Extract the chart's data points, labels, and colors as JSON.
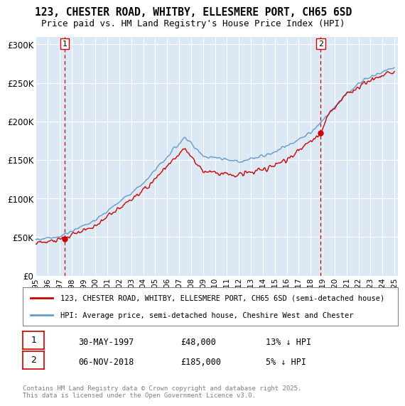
{
  "title_line1": "123, CHESTER ROAD, WHITBY, ELLESMERE PORT, CH65 6SD",
  "title_line2": "Price paid vs. HM Land Registry's House Price Index (HPI)",
  "background_color": "#dce9f5",
  "hpi_color": "#6699cc",
  "price_color": "#cc0000",
  "vline_color": "#cc0000",
  "purchase1_date": "30-MAY-1997",
  "purchase1_price": 48000,
  "purchase1_yr": 1997.42,
  "purchase1_hpi_pct": "13%",
  "purchase2_date": "06-NOV-2018",
  "purchase2_price": 185000,
  "purchase2_yr": 2018.84,
  "purchase2_hpi_pct": "5%",
  "legend_label1": "123, CHESTER ROAD, WHITBY, ELLESMERE PORT, CH65 6SD (semi-detached house)",
  "legend_label2": "HPI: Average price, semi-detached house, Cheshire West and Chester",
  "footnote": "Contains HM Land Registry data © Crown copyright and database right 2025.\nThis data is licensed under the Open Government Licence v3.0.",
  "ylim": [
    0,
    310000
  ],
  "yticks": [
    0,
    50000,
    100000,
    150000,
    200000,
    250000,
    300000
  ],
  "ytick_labels": [
    "£0",
    "£50K",
    "£100K",
    "£150K",
    "£200K",
    "£250K",
    "£300K"
  ],
  "x_start_year": 1995,
  "x_end_year": 2025
}
